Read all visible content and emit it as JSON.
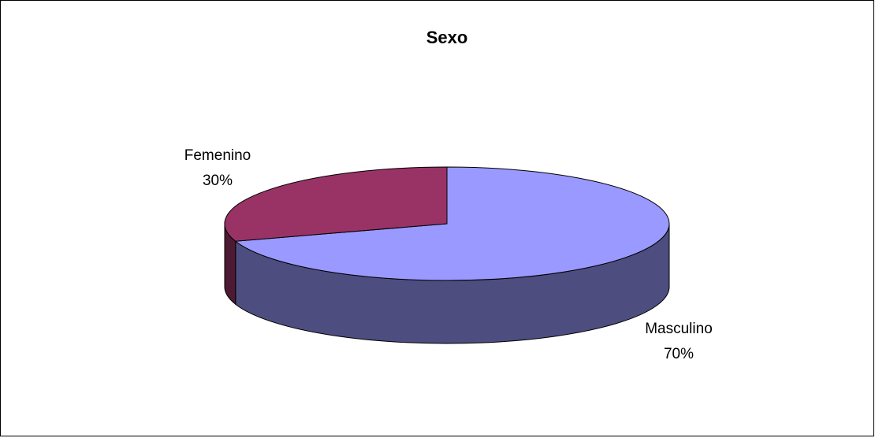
{
  "chart_data": {
    "type": "pie",
    "title": "Sexo",
    "three_d": true,
    "slices": [
      {
        "name": "Masculino",
        "value": 70,
        "label": "70%",
        "color": "#9999ff",
        "side_color": "#4d4d80"
      },
      {
        "name": "Femenino",
        "value": 30,
        "label": "30%",
        "color": "#993366",
        "side_color": "#4d1a33"
      }
    ],
    "border_color": "#000000",
    "background": "#ffffff"
  }
}
